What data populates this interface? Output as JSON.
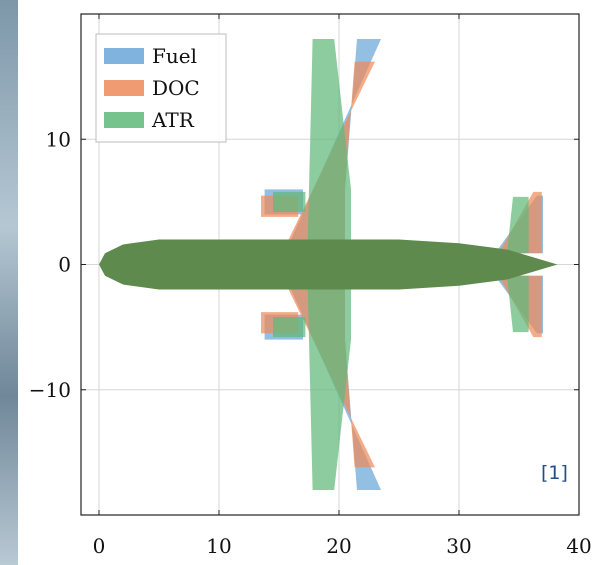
{
  "chart_data": {
    "type": "area",
    "title": "",
    "xlabel": "",
    "ylabel": "",
    "xlim": [
      -1.5,
      40
    ],
    "ylim": [
      -20,
      20
    ],
    "x_ticks": [
      0,
      10,
      20,
      30,
      40
    ],
    "y_ticks": [
      -10,
      0,
      10
    ],
    "x_tick_labels": [
      "0",
      "10",
      "20",
      "30",
      "40"
    ],
    "y_tick_labels": [
      "−10",
      "0",
      "10"
    ],
    "grid": true,
    "legend_position": "top-left",
    "fuselage": {
      "color": "#5e8a4e",
      "points": [
        [
          0,
          0
        ],
        [
          0.5,
          -0.9
        ],
        [
          2,
          -1.6
        ],
        [
          5,
          -2.0
        ],
        [
          25,
          -2.0
        ],
        [
          30,
          -1.7
        ],
        [
          34,
          -1.2
        ],
        [
          38.2,
          0
        ],
        [
          34,
          1.2
        ],
        [
          30,
          1.7
        ],
        [
          25,
          2.0
        ],
        [
          5,
          2.0
        ],
        [
          2,
          1.6
        ],
        [
          0.5,
          0.9
        ]
      ]
    },
    "series": [
      {
        "name": "Fuel",
        "color": "#6aa6d8",
        "wing": [
          [
            16,
            2
          ],
          [
            23.5,
            18
          ],
          [
            21.5,
            18
          ],
          [
            20.5,
            6
          ],
          [
            20.5,
            2
          ]
        ],
        "engine": [
          [
            13.8,
            6
          ],
          [
            17,
            6
          ],
          [
            17,
            4
          ],
          [
            13.8,
            4
          ]
        ],
        "tail": [
          [
            33,
            0.9
          ],
          [
            36.5,
            5.5
          ],
          [
            37,
            5.5
          ],
          [
            37,
            0.9
          ]
        ]
      },
      {
        "name": "DOC",
        "color": "#ef8a5a",
        "wing": [
          [
            15.8,
            2
          ],
          [
            23,
            16.2
          ],
          [
            21.3,
            16.2
          ],
          [
            20.5,
            6
          ],
          [
            20.5,
            2
          ]
        ],
        "engine": [
          [
            13.5,
            5.5
          ],
          [
            16.6,
            5.5
          ],
          [
            16.6,
            3.8
          ],
          [
            13.5,
            3.8
          ]
        ],
        "tail": [
          [
            33.3,
            0.9
          ],
          [
            36.2,
            5.8
          ],
          [
            36.9,
            5.8
          ],
          [
            36.9,
            0.9
          ]
        ]
      },
      {
        "name": "ATR",
        "color": "#5fb87a",
        "wing": [
          [
            17.4,
            2
          ],
          [
            17.8,
            18
          ],
          [
            19.6,
            18
          ],
          [
            21,
            6
          ],
          [
            21,
            2
          ]
        ],
        "engine": [
          [
            14.5,
            5.8
          ],
          [
            17.2,
            5.8
          ],
          [
            17.2,
            4.2
          ],
          [
            14.5,
            4.2
          ]
        ],
        "tail": [
          [
            34,
            0.9
          ],
          [
            34.5,
            5.4
          ],
          [
            35.8,
            5.4
          ],
          [
            35.8,
            0.9
          ]
        ]
      }
    ],
    "annotation": "[1]"
  }
}
